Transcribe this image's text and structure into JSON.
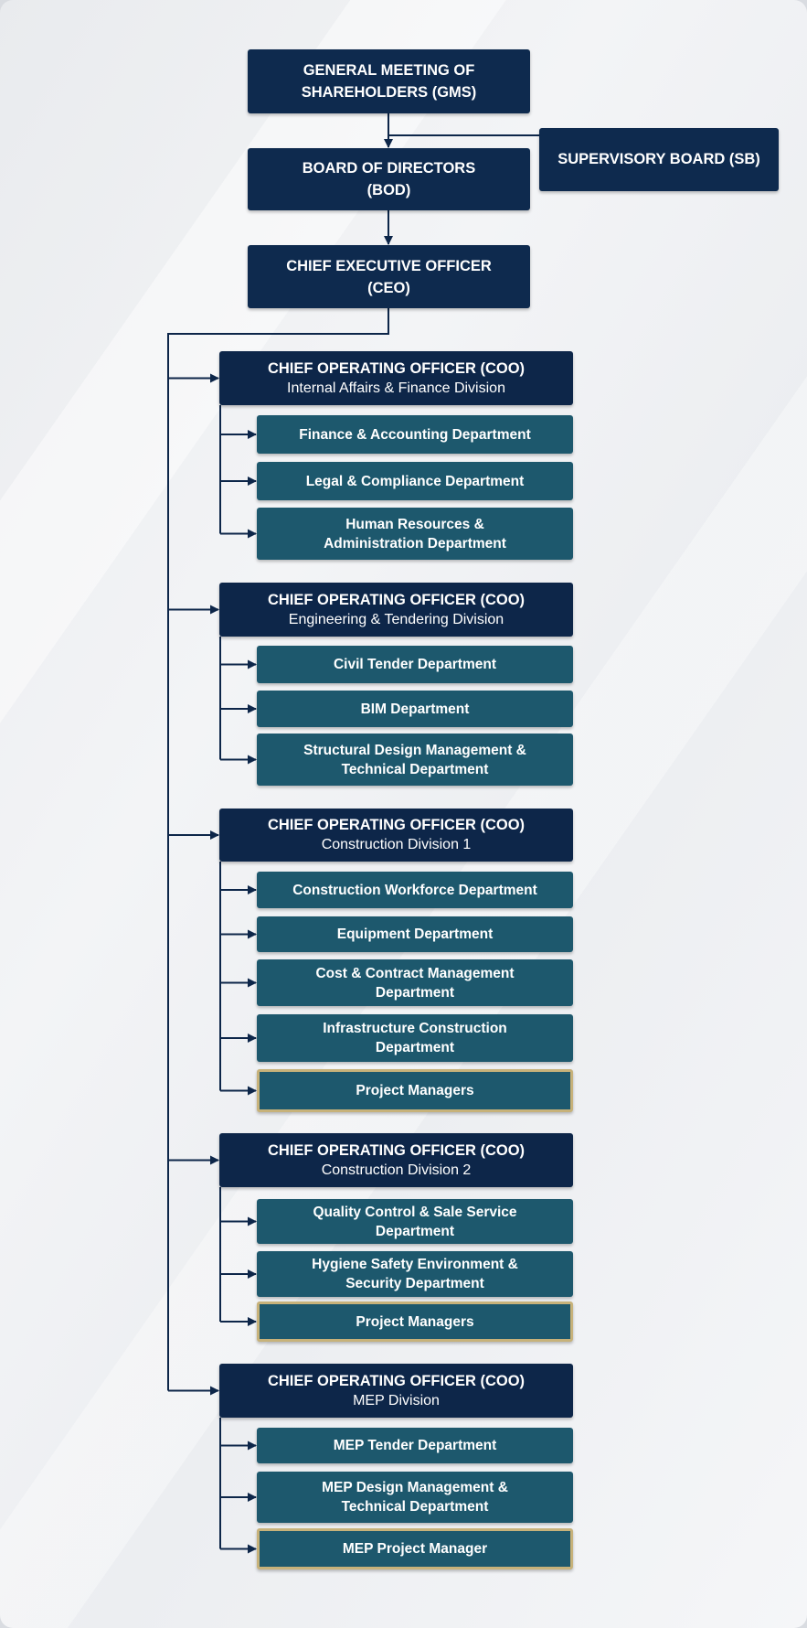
{
  "colors": {
    "navy": "#0d2649",
    "department": "#1d586d",
    "highlight_border": "#c7b27a",
    "connector": "#0d2649"
  },
  "top": {
    "gms": [
      "GENERAL MEETING OF",
      "SHAREHOLDERS (GMS)"
    ],
    "sb": "SUPERVISORY BOARD (SB)",
    "bod": [
      "BOARD OF DIRECTORS",
      "(BOD)"
    ],
    "ceo": [
      "CHIEF EXECUTIVE OFFICER",
      "(CEO)"
    ]
  },
  "divisions": [
    {
      "title": "CHIEF OPERATING OFFICER (COO)",
      "subtitle": "Internal Affairs & Finance Division",
      "departments": [
        [
          "Finance & Accounting Department"
        ],
        [
          "Legal & Compliance Department"
        ],
        [
          "Human Resources &",
          "Administration Department"
        ]
      ]
    },
    {
      "title": "CHIEF OPERATING OFFICER (COO)",
      "subtitle": "Engineering & Tendering Division",
      "departments": [
        [
          "Civil Tender Department"
        ],
        [
          "BIM Department"
        ],
        [
          "Structural Design Management &",
          "Technical Department"
        ]
      ]
    },
    {
      "title": "CHIEF OPERATING OFFICER (COO)",
      "subtitle": "Construction Division 1",
      "departments": [
        [
          "Construction Workforce Department"
        ],
        [
          "Equipment Department"
        ],
        [
          "Cost & Contract Management",
          "Department"
        ],
        [
          "Infrastructure Construction",
          "Department"
        ],
        [
          "Project Managers"
        ]
      ]
    },
    {
      "title": "CHIEF OPERATING OFFICER (COO)",
      "subtitle": "Construction Division 2",
      "departments": [
        [
          "Quality Control & Sale Service",
          "Department"
        ],
        [
          "Hygiene Safety Environment &",
          "Security Department"
        ],
        [
          "Project Managers"
        ]
      ]
    },
    {
      "title": "CHIEF OPERATING OFFICER (COO)",
      "subtitle": "MEP Division",
      "departments": [
        [
          "MEP Tender Department"
        ],
        [
          "MEP Design Management &",
          "Technical Department"
        ],
        [
          "MEP Project Manager"
        ]
      ]
    }
  ]
}
